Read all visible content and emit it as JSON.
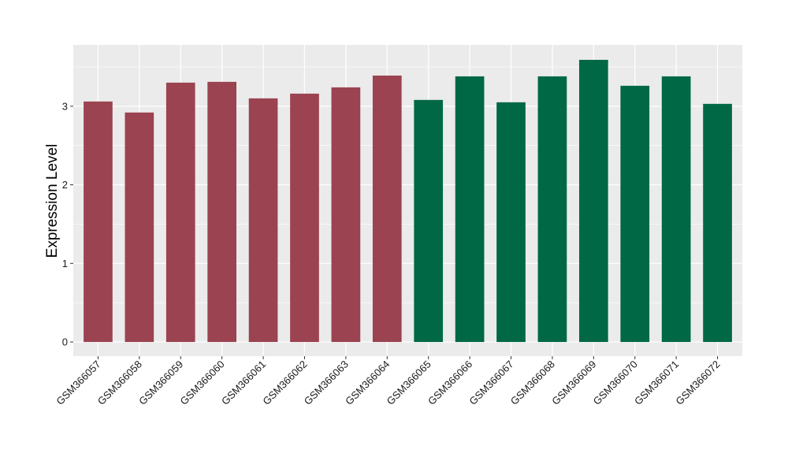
{
  "chart_data": {
    "type": "bar",
    "title": "",
    "xlabel": "",
    "ylabel": "Expression Level",
    "ylim": [
      -0.18,
      3.78
    ],
    "yticks": [
      0,
      1,
      2,
      3
    ],
    "grid": true,
    "categories": [
      "GSM366057",
      "GSM366058",
      "GSM366059",
      "GSM366060",
      "GSM366061",
      "GSM366062",
      "GSM366063",
      "GSM366064",
      "GSM366065",
      "GSM366066",
      "GSM366067",
      "GSM366068",
      "GSM366069",
      "GSM366070",
      "GSM366071",
      "GSM366072"
    ],
    "values": [
      3.06,
      2.92,
      3.3,
      3.31,
      3.1,
      3.16,
      3.24,
      3.39,
      3.08,
      3.38,
      3.05,
      3.38,
      3.59,
      3.26,
      3.38,
      3.03
    ],
    "bar_colors": [
      "#9b4350",
      "#9b4350",
      "#9b4350",
      "#9b4350",
      "#9b4350",
      "#9b4350",
      "#9b4350",
      "#9b4350",
      "#006845",
      "#006845",
      "#006845",
      "#006845",
      "#006845",
      "#006845",
      "#006845",
      "#006845"
    ],
    "panel_background": "#ebebeb",
    "grid_color": "#ffffff"
  }
}
